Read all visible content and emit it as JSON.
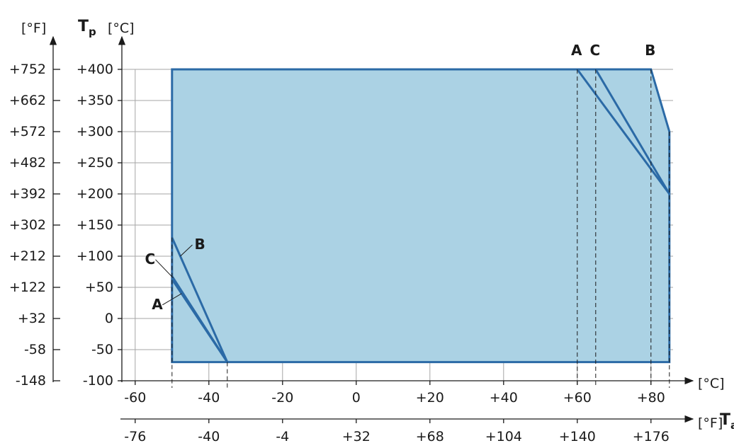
{
  "chart_data": {
    "type": "area",
    "y_symbol": "T",
    "y_symbol_sub": "p",
    "x_symbol": "T",
    "x_symbol_sub": "a",
    "y_unit_c": "[°C]",
    "y_unit_f": "[°F]",
    "x_unit_c": "[°C]",
    "x_unit_f": "[°F]",
    "xlim": [
      -64,
      86
    ],
    "ylim": [
      -100,
      400
    ],
    "x_ticks_c": [
      {
        "v": -60,
        "label": "-60"
      },
      {
        "v": -40,
        "label": "-40"
      },
      {
        "v": -20,
        "label": "-20"
      },
      {
        "v": 0,
        "label": "0"
      },
      {
        "v": 20,
        "label": "+20"
      },
      {
        "v": 40,
        "label": "+40"
      },
      {
        "v": 60,
        "label": "+60"
      },
      {
        "v": 80,
        "label": "+80"
      }
    ],
    "x_ticks_f": [
      {
        "v": -60,
        "label": "-76"
      },
      {
        "v": -40,
        "label": "-40"
      },
      {
        "v": -20,
        "label": "-4"
      },
      {
        "v": 0,
        "label": "+32"
      },
      {
        "v": 20,
        "label": "+68"
      },
      {
        "v": 40,
        "label": "+104"
      },
      {
        "v": 60,
        "label": "+140"
      },
      {
        "v": 80,
        "label": "+176"
      }
    ],
    "y_ticks_c": [
      {
        "v": 400,
        "label": "+400"
      },
      {
        "v": 350,
        "label": "+350"
      },
      {
        "v": 300,
        "label": "+300"
      },
      {
        "v": 250,
        "label": "+250"
      },
      {
        "v": 200,
        "label": "+200"
      },
      {
        "v": 150,
        "label": "+150"
      },
      {
        "v": 100,
        "label": "+100"
      },
      {
        "v": 50,
        "label": "+50"
      },
      {
        "v": 0,
        "label": "0"
      },
      {
        "v": -50,
        "label": "-50"
      },
      {
        "v": -100,
        "label": "-100"
      }
    ],
    "y_ticks_f": [
      {
        "v": 400,
        "label": "+752"
      },
      {
        "v": 350,
        "label": "+662"
      },
      {
        "v": 300,
        "label": "+572"
      },
      {
        "v": 250,
        "label": "+482"
      },
      {
        "v": 200,
        "label": "+392"
      },
      {
        "v": 150,
        "label": "+302"
      },
      {
        "v": 100,
        "label": "+212"
      },
      {
        "v": 50,
        "label": "+122"
      },
      {
        "v": 0,
        "label": "+32"
      },
      {
        "v": -50,
        "label": "-58"
      },
      {
        "v": -100,
        "label": "-148"
      }
    ],
    "envelope": [
      [
        -50,
        -70
      ],
      [
        -50,
        400
      ],
      [
        80,
        400
      ],
      [
        85,
        300
      ],
      [
        85,
        -70
      ],
      [
        -35,
        -70
      ]
    ],
    "derating_lines": [
      {
        "name": "A",
        "points": [
          [
            -50,
            63
          ],
          [
            -35,
            -70
          ]
        ]
      },
      {
        "name": "C",
        "points": [
          [
            -50,
            68
          ],
          [
            -35,
            -70
          ]
        ]
      },
      {
        "name": "B",
        "points": [
          [
            -50,
            130
          ],
          [
            -35,
            -70
          ]
        ]
      },
      {
        "name": "A",
        "points": [
          [
            60,
            400
          ],
          [
            85,
            200
          ]
        ]
      },
      {
        "name": "C",
        "points": [
          [
            65,
            400
          ],
          [
            85,
            200
          ]
        ]
      }
    ],
    "dashed_x": [
      -50,
      -35,
      60,
      65,
      80,
      85
    ],
    "top_labels": [
      {
        "name": "A",
        "x": 60
      },
      {
        "name": "C",
        "x": 65
      },
      {
        "name": "B",
        "x": 80
      }
    ],
    "side_labels": [
      {
        "name": "B",
        "line": 2,
        "y": 100
      },
      {
        "name": "C",
        "line": 1,
        "y": 65
      },
      {
        "name": "A",
        "line": 0,
        "y": 40
      }
    ],
    "grid": true,
    "fill_color": "#abd2e4",
    "line_color": "#2b6aa6"
  }
}
